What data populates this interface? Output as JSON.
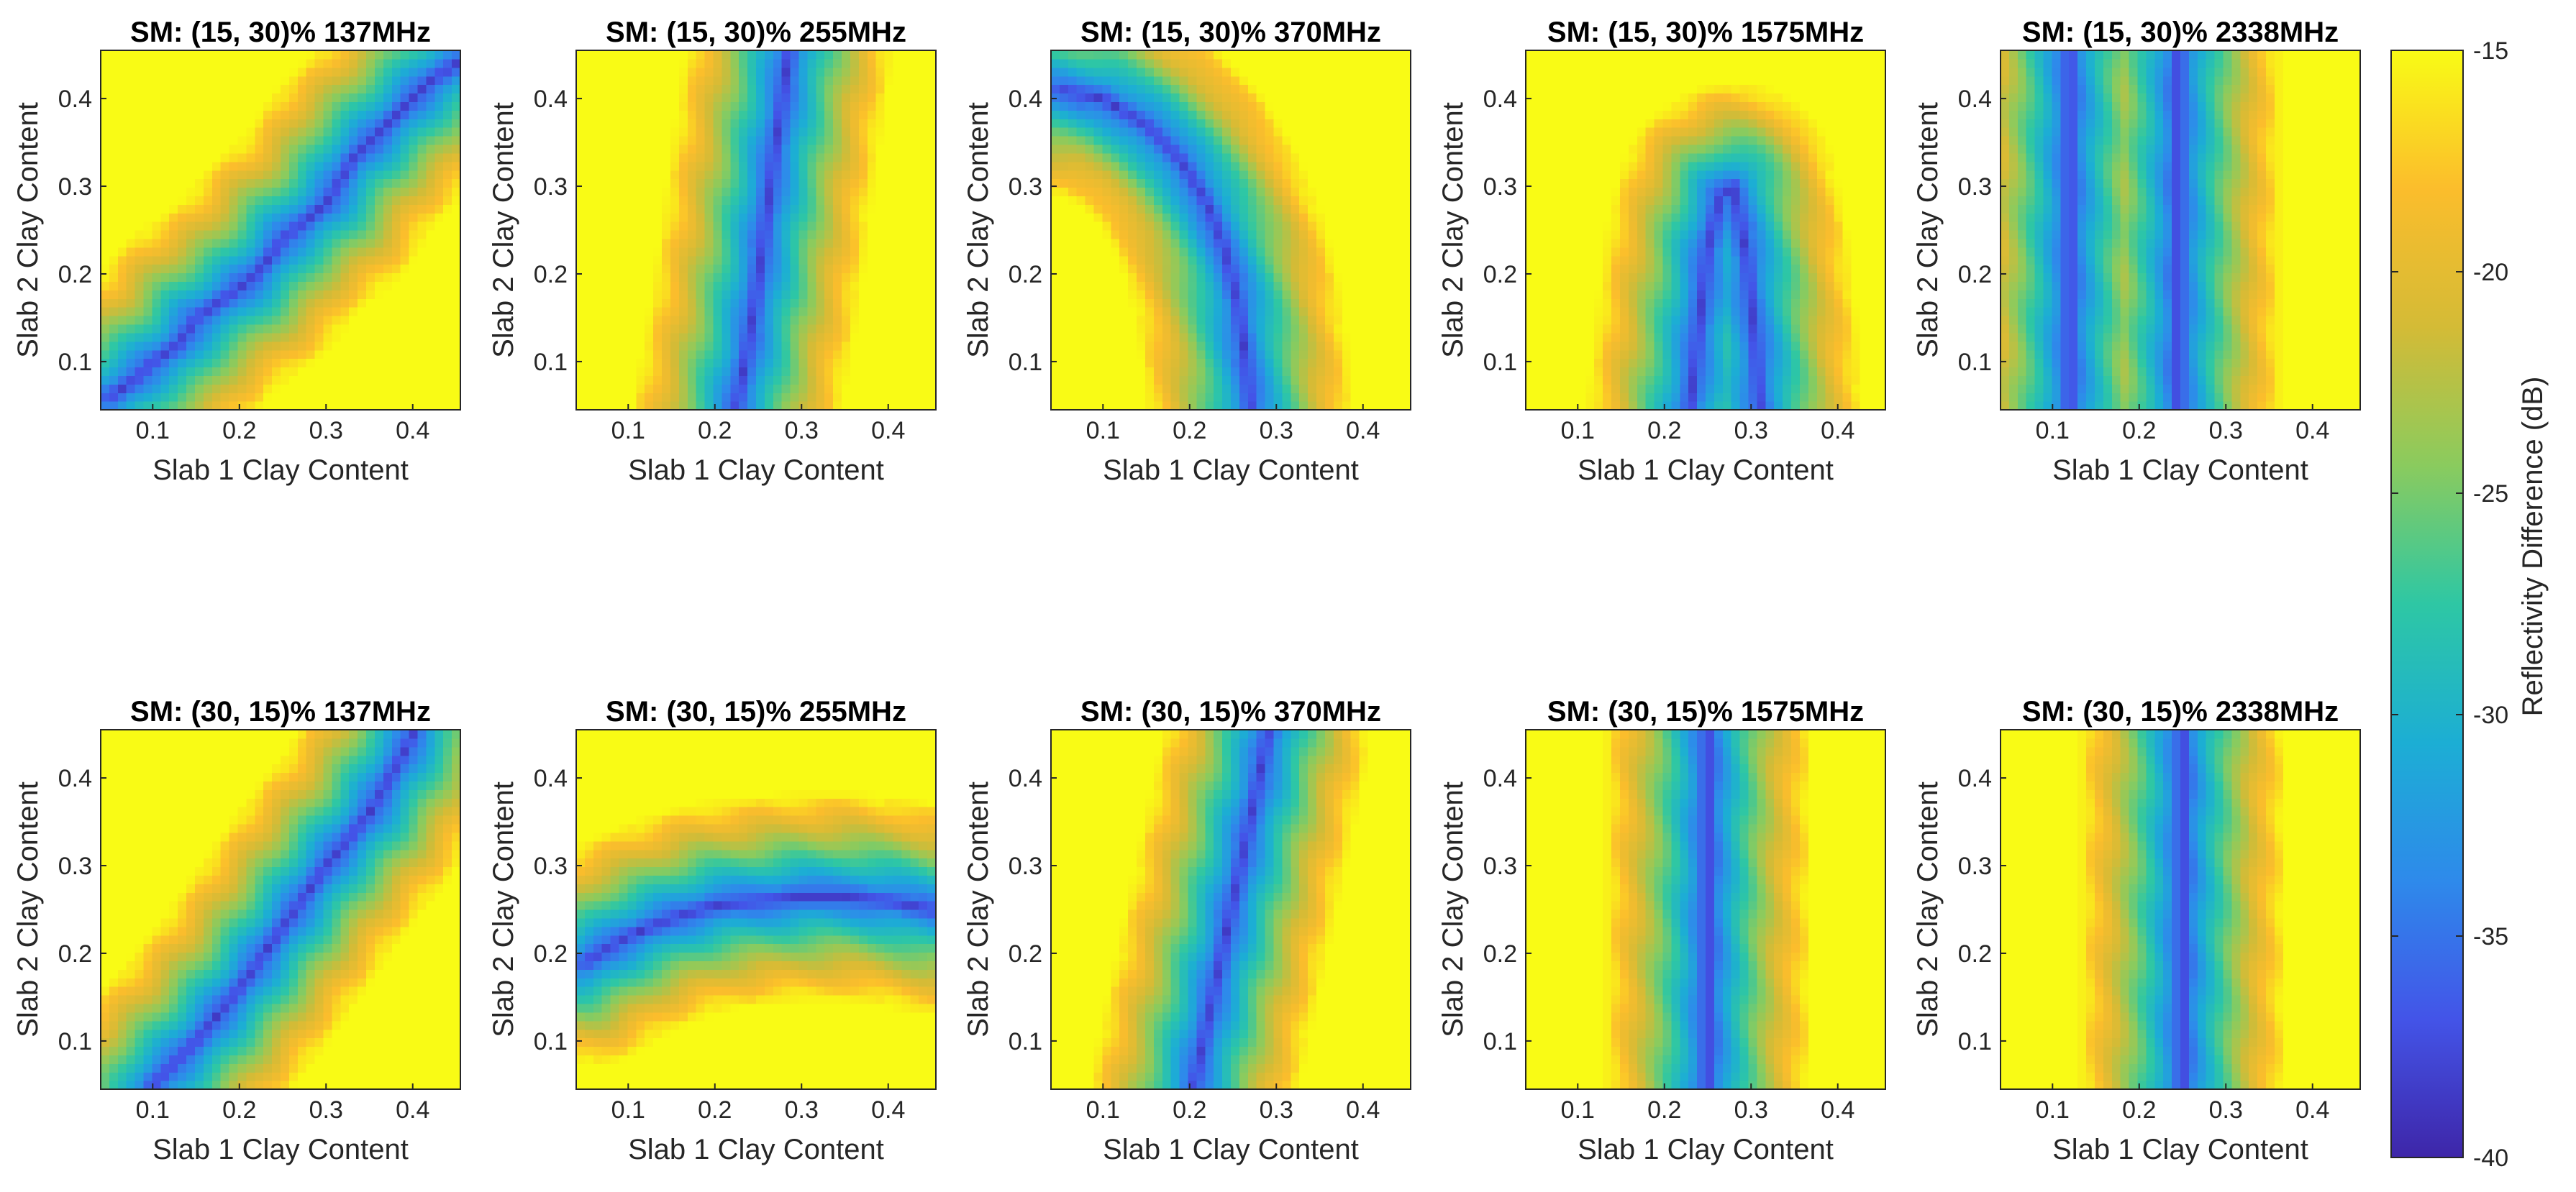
{
  "chart_data": {
    "type": "heatmap",
    "figure_description_grid": "2 rows x 5 columns of heatmaps",
    "panels": [
      {
        "title": "SM: (15, 30)% 137MHz",
        "xlabel": "Slab 1 Clay Content",
        "ylabel": "Slab 2 Clay Content",
        "freq_mhz": 137,
        "sm": [
          15,
          30
        ],
        "null_curve": {
          "x": [
            0.05,
            0.08,
            0.1,
            0.13,
            0.15,
            0.18,
            0.22,
            0.25,
            0.3,
            0.33,
            0.38,
            0.42,
            0.45
          ],
          "y": [
            0.06,
            0.08,
            0.1,
            0.12,
            0.15,
            0.17,
            0.2,
            0.24,
            0.28,
            0.33,
            0.38,
            0.42,
            0.44
          ]
        }
      },
      {
        "title": "SM: (15, 30)% 255MHz",
        "xlabel": "Slab 1 Clay Content",
        "ylabel": "Slab 2 Clay Content",
        "freq_mhz": 255,
        "sm": [
          15,
          30
        ],
        "null_curve": {
          "x": [
            0.225,
            0.235,
            0.245,
            0.255,
            0.265,
            0.275,
            0.285
          ],
          "y": [
            0.05,
            0.1,
            0.16,
            0.23,
            0.31,
            0.38,
            0.45
          ]
        }
      },
      {
        "title": "SM: (15, 30)% 370MHz",
        "xlabel": "Slab 1 Clay Content",
        "ylabel": "Slab 2 Clay Content",
        "freq_mhz": 370,
        "sm": [
          15,
          30
        ],
        "null_curve": {
          "x": [
            0.05,
            0.1,
            0.15,
            0.19,
            0.22,
            0.24,
            0.255,
            0.265,
            0.27
          ],
          "y": [
            0.41,
            0.4,
            0.37,
            0.33,
            0.28,
            0.23,
            0.17,
            0.1,
            0.05
          ]
        }
      },
      {
        "title": "SM: (15, 30)% 1575MHz",
        "xlabel": "Slab 1 Clay Content",
        "ylabel": "Slab 2 Clay Content",
        "freq_mhz": 1575,
        "sm": [
          15,
          30
        ],
        "null_curve": {
          "x": [
            0.23,
            0.24,
            0.25,
            0.265,
            0.28,
            0.295,
            0.305,
            0.31
          ],
          "y": [
            0.05,
            0.14,
            0.23,
            0.29,
            0.3,
            0.22,
            0.12,
            0.05
          ]
        }
      },
      {
        "title": "SM: (15, 30)% 2338MHz",
        "xlabel": "Slab 1 Clay Content",
        "ylabel": "Slab 2 Clay Content",
        "freq_mhz": 2338,
        "sm": [
          15,
          30
        ],
        "null_bands_x": [
          0.12,
          0.245
        ]
      },
      {
        "title": "SM: (30, 15)% 137MHz",
        "xlabel": "Slab 1 Clay Content",
        "ylabel": "Slab 2 Clay Content",
        "freq_mhz": 137,
        "sm": [
          30,
          15
        ],
        "null_curve": {
          "x": [
            0.1,
            0.15,
            0.2,
            0.25,
            0.3,
            0.35,
            0.39,
            0.4
          ],
          "y": [
            0.05,
            0.1,
            0.16,
            0.23,
            0.3,
            0.36,
            0.43,
            0.45
          ]
        }
      },
      {
        "title": "SM: (30, 15)% 255MHz",
        "xlabel": "Slab 1 Clay Content",
        "ylabel": "Slab 2 Clay Content",
        "freq_mhz": 255,
        "sm": [
          30,
          15
        ],
        "null_curve": {
          "x": [
            0.05,
            0.1,
            0.15,
            0.2,
            0.25,
            0.3,
            0.35,
            0.4,
            0.45
          ],
          "y": [
            0.19,
            0.22,
            0.24,
            0.255,
            0.26,
            0.265,
            0.265,
            0.26,
            0.25
          ]
        }
      },
      {
        "title": "SM: (30, 15)% 370MHz",
        "xlabel": "Slab 1 Clay Content",
        "ylabel": "Slab 2 Clay Content",
        "freq_mhz": 370,
        "sm": [
          30,
          15
        ],
        "null_curve": {
          "x": [
            0.205,
            0.22,
            0.235,
            0.25,
            0.265,
            0.28,
            0.29
          ],
          "y": [
            0.05,
            0.12,
            0.19,
            0.26,
            0.33,
            0.4,
            0.45
          ]
        }
      },
      {
        "title": "SM: (30, 15)% 1575MHz",
        "xlabel": "Slab 1 Clay Content",
        "ylabel": "Slab 2 Clay Content",
        "freq_mhz": 1575,
        "sm": [
          30,
          15
        ],
        "null_bands_x": [
          0.25
        ]
      },
      {
        "title": "SM: (30, 15)% 2338MHz",
        "xlabel": "Slab 1 Clay Content",
        "ylabel": "Slab 2 Clay Content",
        "freq_mhz": 2338,
        "sm": [
          30,
          15
        ],
        "null_bands_x": [
          0.25
        ]
      }
    ],
    "xlim": [
      0.04,
      0.455
    ],
    "ylim": [
      0.045,
      0.455
    ],
    "xticks": [
      "0.1",
      "0.2",
      "0.3",
      "0.4"
    ],
    "yticks": [
      "0.1",
      "0.2",
      "0.3",
      "0.4"
    ],
    "tick_values": [
      0.1,
      0.2,
      0.3,
      0.4
    ],
    "colorbar": {
      "label": "Reflectivity Difference (dB)",
      "range": [
        -40,
        -15
      ],
      "ticks": [
        "-15",
        "-20",
        "-25",
        "-30",
        "-35",
        "-40"
      ],
      "tick_values": [
        -15,
        -20,
        -25,
        -30,
        -35,
        -40
      ],
      "colormap": "parula",
      "colormap_stops": [
        "#3e26a8",
        "#4354e8",
        "#2e8aeb",
        "#1caed4",
        "#2ec7a4",
        "#8acb5e",
        "#d4bb36",
        "#fbbd2c",
        "#f9fb15"
      ]
    }
  }
}
